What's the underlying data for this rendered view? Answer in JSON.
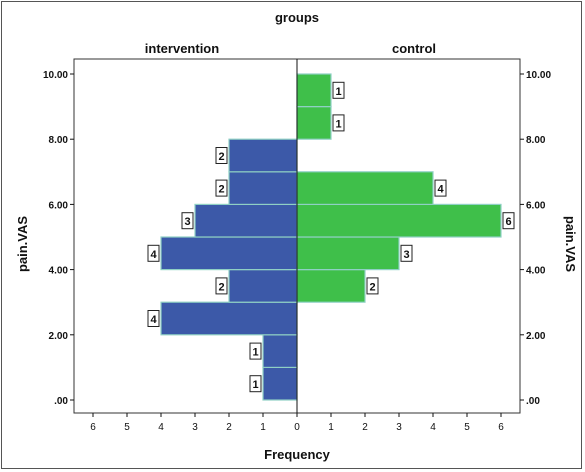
{
  "chart_data": {
    "type": "bar",
    "orientation": "back-to-back horizontal histogram (population pyramid)",
    "title": "groups",
    "panels": [
      "intervention",
      "control"
    ],
    "ylabel": "pain.VAS",
    "xlabel": "Frequency",
    "ylim": [
      0,
      10
    ],
    "yticks": [
      ".00",
      "2.00",
      "4.00",
      "6.00",
      "8.00",
      "10.00"
    ],
    "xticks_left": [
      "6",
      "5",
      "4",
      "3",
      "2",
      "1",
      "0"
    ],
    "xticks_right": [
      "1",
      "2",
      "3",
      "4",
      "5",
      "6"
    ],
    "bin_width": 1,
    "series": [
      {
        "name": "intervention",
        "color": "#3c59a8",
        "bins": [
          {
            "from": 0,
            "to": 1,
            "value": 1
          },
          {
            "from": 1,
            "to": 2,
            "value": 1
          },
          {
            "from": 2,
            "to": 3,
            "value": 4
          },
          {
            "from": 3,
            "to": 4,
            "value": 2
          },
          {
            "from": 4,
            "to": 5,
            "value": 4
          },
          {
            "from": 5,
            "to": 6,
            "value": 3
          },
          {
            "from": 6,
            "to": 7,
            "value": 2
          },
          {
            "from": 7,
            "to": 8,
            "value": 2
          }
        ]
      },
      {
        "name": "control",
        "color": "#3fbf4a",
        "bins": [
          {
            "from": 3,
            "to": 4,
            "value": 2
          },
          {
            "from": 4,
            "to": 5,
            "value": 3
          },
          {
            "from": 5,
            "to": 6,
            "value": 6
          },
          {
            "from": 6,
            "to": 7,
            "value": 4
          },
          {
            "from": 8,
            "to": 9,
            "value": 1
          },
          {
            "from": 9,
            "to": 10,
            "value": 1
          }
        ]
      }
    ],
    "grid": false,
    "legend": "none"
  }
}
